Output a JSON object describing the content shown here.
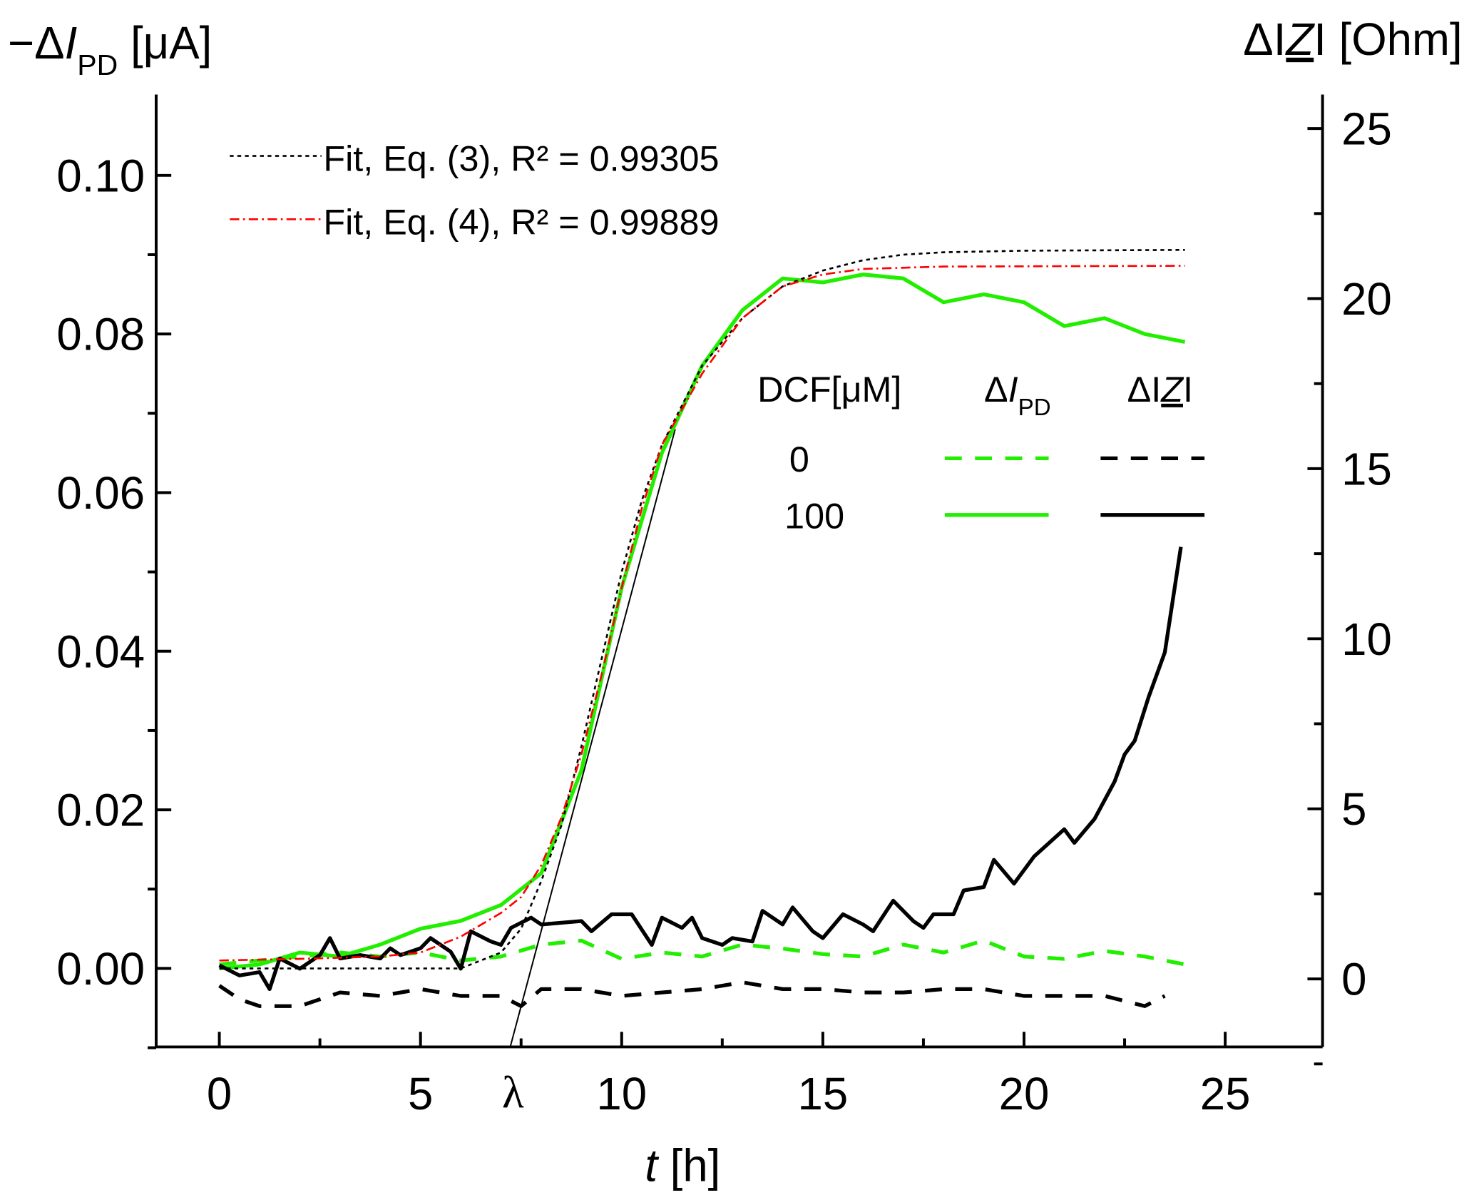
{
  "chart_data": {
    "type": "line",
    "xlabel": [
      {
        "text": "t",
        "style": "italic"
      },
      {
        "text": " [h]"
      }
    ],
    "ylabel": [
      {
        "text": "−Δ"
      },
      {
        "text": "I",
        "style": "italic"
      },
      {
        "text": "PD",
        "style": "sub"
      },
      {
        "text": " [μA]"
      }
    ],
    "y2label": [
      {
        "text": "ΔI"
      },
      {
        "text": "Z",
        "style": "italic-underline"
      },
      {
        "text": "I [Ohm]"
      }
    ],
    "xlim": [
      -1.57,
      27.42
    ],
    "xticks": [
      0,
      5,
      10,
      15,
      20,
      25
    ],
    "xminorticks": [
      2.5,
      7.5,
      12.5,
      17.5,
      22.5
    ],
    "ylim": [
      -0.0099,
      0.1102
    ],
    "yticks": [
      {
        "value": 0,
        "label": "0.00"
      },
      {
        "value": 0.02,
        "label": "0.02"
      },
      {
        "value": 0.04,
        "label": "0.04"
      },
      {
        "value": 0.06,
        "label": "0.06"
      },
      {
        "value": 0.08,
        "label": "0.08"
      },
      {
        "value": 0.1,
        "label": "0.10"
      }
    ],
    "yminorticks": [
      -0.01,
      0.01,
      0.03,
      0.05,
      0.07,
      0.09
    ],
    "y2lim": [
      -2,
      26
    ],
    "y2ticks": [
      0,
      5,
      10,
      15,
      20,
      25
    ],
    "y2minorticks": [
      -2.5,
      2.5,
      7.5,
      12.5,
      17.5,
      22.5
    ],
    "series": [
      {
        "color": "#22ee00",
        "dash": "dashed",
        "axis": "y",
        "x": [
          0,
          1,
          2,
          3,
          4,
          5,
          6,
          7,
          8,
          9,
          10,
          11,
          12,
          13,
          14,
          15,
          16,
          17,
          18,
          19,
          20,
          21,
          22,
          23,
          24
        ],
        "values": [
          0.0005,
          0.001,
          0.0015,
          0.002,
          0.0015,
          0.002,
          0.001,
          0.0015,
          0.003,
          0.0035,
          0.0012,
          0.002,
          0.0015,
          0.003,
          0.0025,
          0.0018,
          0.0015,
          0.003,
          0.002,
          0.0035,
          0.0015,
          0.0012,
          0.0022,
          0.0015,
          0.0005
        ]
      },
      {
        "color": "#22ee00",
        "dash": "solid",
        "axis": "y",
        "x": [
          0,
          1,
          2,
          3,
          4,
          5,
          6,
          7,
          8,
          9,
          10,
          11,
          12,
          13,
          14,
          15,
          16,
          17,
          18,
          19,
          20,
          21,
          22,
          23,
          24
        ],
        "values": [
          0,
          0.0005,
          0.002,
          0.0015,
          0.003,
          0.005,
          0.006,
          0.008,
          0.012,
          0.025,
          0.048,
          0.065,
          0.076,
          0.083,
          0.087,
          0.0865,
          0.0875,
          0.087,
          0.084,
          0.085,
          0.084,
          0.081,
          0.082,
          0.08,
          0.079
        ]
      },
      {
        "color": "#000000",
        "dash": "dashed",
        "axis": "y2",
        "x": [
          0,
          0.5,
          1,
          2,
          3,
          4,
          5,
          6,
          7,
          7.5,
          8,
          9,
          10,
          11,
          12,
          13,
          14,
          15,
          16,
          17,
          18,
          19,
          20,
          21,
          22,
          23,
          23.5
        ],
        "values": [
          -0.2,
          -0.6,
          -0.8,
          -0.8,
          -0.4,
          -0.5,
          -0.3,
          -0.5,
          -0.5,
          -0.8,
          -0.3,
          -0.3,
          -0.5,
          -0.4,
          -0.3,
          -0.1,
          -0.3,
          -0.3,
          -0.4,
          -0.4,
          -0.3,
          -0.3,
          -0.5,
          -0.5,
          -0.5,
          -0.8,
          -0.5
        ]
      },
      {
        "color": "#000000",
        "dash": "solid",
        "axis": "y2",
        "x": [
          0,
          0.5,
          1,
          1.25,
          1.5,
          2,
          2.5,
          2.75,
          3,
          3.5,
          4,
          4.25,
          4.5,
          5,
          5.25,
          5.75,
          6,
          6.25,
          6.75,
          7,
          7.25,
          7.75,
          8,
          9,
          9.25,
          9.75,
          10.25,
          10.75,
          11,
          11.5,
          11.75,
          12,
          12.5,
          12.75,
          13.25,
          13.5,
          14,
          14.25,
          14.75,
          15,
          15.5,
          16,
          16.25,
          16.75,
          17.25,
          17.5,
          17.75,
          18.25,
          18.5,
          19,
          19.25,
          19.75,
          20.25,
          21,
          21.25,
          21.75,
          22.25,
          22.5,
          22.75,
          23.1,
          23.5,
          23.9
        ],
        "values": [
          0.4,
          0.1,
          0.2,
          -0.3,
          0.6,
          0.3,
          0.7,
          1.2,
          0.6,
          0.7,
          0.6,
          0.9,
          0.7,
          0.9,
          1.2,
          0.8,
          0.3,
          1.4,
          1.1,
          1.0,
          1.5,
          1.8,
          1.6,
          1.7,
          1.4,
          1.9,
          1.9,
          1.0,
          1.8,
          1.5,
          1.8,
          1.2,
          1.0,
          1.2,
          1.1,
          2.0,
          1.6,
          2.1,
          1.4,
          1.2,
          1.9,
          1.6,
          1.4,
          2.3,
          1.7,
          1.5,
          1.9,
          1.9,
          2.6,
          2.7,
          3.5,
          2.8,
          3.6,
          4.4,
          4.0,
          4.7,
          5.8,
          6.6,
          7.0,
          8.3,
          9.6,
          12.7
        ]
      },
      {
        "name": "Fit, Eq. (3), R² = 0.99305",
        "color": "#000000",
        "dash": "dotted",
        "axis": "y",
        "x": [
          0,
          2,
          4,
          6,
          7,
          7.5,
          8,
          8.5,
          9,
          9.5,
          10,
          10.5,
          11,
          12,
          13,
          14,
          15,
          16,
          17,
          18,
          20,
          24
        ],
        "values": [
          0,
          0,
          0,
          0,
          0.002,
          0.005,
          0.011,
          0.018,
          0.028,
          0.039,
          0.05,
          0.059,
          0.066,
          0.076,
          0.082,
          0.086,
          0.088,
          0.0893,
          0.09,
          0.0903,
          0.0905,
          0.0906
        ]
      },
      {
        "name": "Fit, Eq. (4), R² = 0.99889",
        "color": "#ff0000",
        "dash": "dashdot",
        "axis": "y",
        "x": [
          0,
          2,
          4,
          5,
          6,
          7,
          7.5,
          8,
          8.5,
          9,
          9.5,
          10,
          10.5,
          11,
          12,
          13,
          14,
          15,
          16,
          18,
          24
        ],
        "values": [
          0.001,
          0.0012,
          0.0015,
          0.002,
          0.004,
          0.007,
          0.009,
          0.013,
          0.019,
          0.027,
          0.037,
          0.048,
          0.058,
          0.066,
          0.075,
          0.082,
          0.086,
          0.0875,
          0.0882,
          0.0885,
          0.0886
        ]
      }
    ],
    "tangent": {
      "color": "#000000",
      "x": [
        7.23,
        11.33
      ],
      "values": [
        -0.0099,
        0.068
      ]
    },
    "annotations": [
      {
        "text": "λ",
        "x": 7.3
      }
    ],
    "legend_table": {
      "headers": [
        [
          {
            "text": "DCF[μM]"
          }
        ],
        [
          {
            "text": "Δ"
          },
          {
            "text": "I",
            "style": "italic"
          },
          {
            "text": "PD",
            "style": "sub"
          }
        ],
        [
          {
            "text": "ΔI"
          },
          {
            "text": "Z",
            "style": "italic-underline"
          },
          {
            "text": "I"
          }
        ]
      ],
      "rows": [
        "0",
        "100"
      ]
    }
  }
}
